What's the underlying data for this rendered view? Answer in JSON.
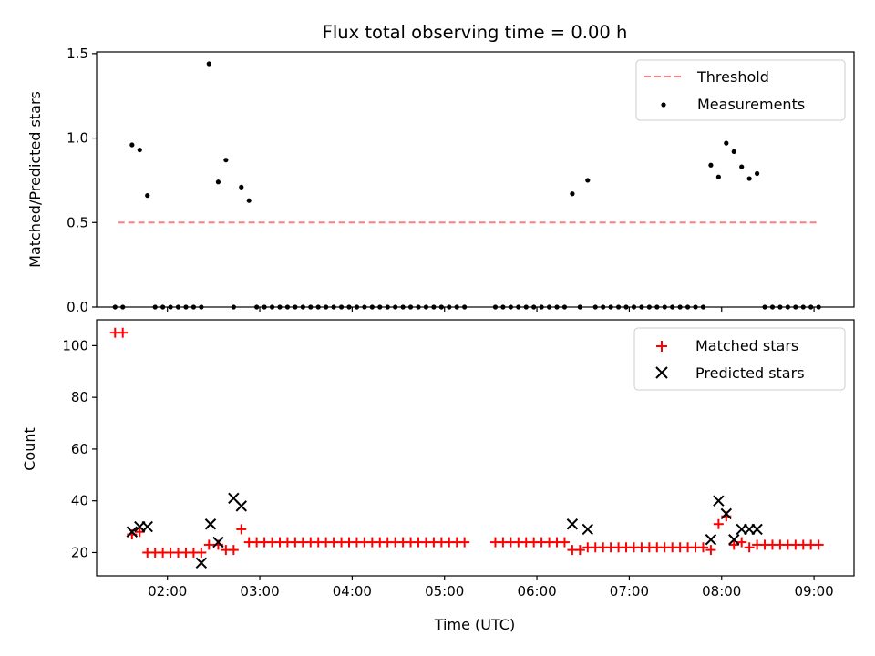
{
  "chart_data": [
    {
      "type": "scatter",
      "title": "Flux total observing time = 0.00 h",
      "xlabel": "",
      "ylabel": "Matched/Predicted stars",
      "xlim": [
        "01:14",
        "09:26"
      ],
      "ylim": [
        0,
        1.51
      ],
      "yticks": [
        0,
        0.5,
        1.0,
        1.5
      ],
      "ytick_labels": [
        "0.0",
        "0.5",
        "1.0",
        "1.5"
      ],
      "xticks": [
        "02:00",
        "03:00",
        "04:00",
        "05:00",
        "06:00",
        "07:00",
        "08:00",
        "09:00"
      ],
      "xtick_labels_shown": false,
      "legend_position": "upper right",
      "threshold": {
        "name": "Threshold",
        "value": 0.5,
        "x_start": "01:28",
        "x_end": "09:03",
        "color": "#ff7f7f",
        "style": "dashed"
      },
      "series": [
        {
          "name": "Measurements",
          "color": "#000000",
          "marker": "dot",
          "points": [
            [
              "01:26",
              0.0
            ],
            [
              "01:31",
              0.0
            ],
            [
              "01:37",
              0.96
            ],
            [
              "01:42",
              0.93
            ],
            [
              "01:47",
              0.66
            ],
            [
              "01:52",
              0.0
            ],
            [
              "01:57",
              0.0
            ],
            [
              "02:02",
              0.0
            ],
            [
              "02:07",
              0.0
            ],
            [
              "02:12",
              0.0
            ],
            [
              "02:17",
              0.0
            ],
            [
              "02:22",
              0.0
            ],
            [
              "02:27",
              1.44
            ],
            [
              "02:33",
              0.74
            ],
            [
              "02:38",
              0.87
            ],
            [
              "02:43",
              0.0
            ],
            [
              "02:48",
              0.71
            ],
            [
              "02:53",
              0.63
            ],
            [
              "02:58",
              0.0
            ],
            [
              "03:03",
              0.0
            ],
            [
              "03:08",
              0.0
            ],
            [
              "03:13",
              0.0
            ],
            [
              "03:18",
              0.0
            ],
            [
              "03:23",
              0.0
            ],
            [
              "03:28",
              0.0
            ],
            [
              "03:33",
              0.0
            ],
            [
              "03:38",
              0.0
            ],
            [
              "03:43",
              0.0
            ],
            [
              "03:48",
              0.0
            ],
            [
              "03:53",
              0.0
            ],
            [
              "03:58",
              0.0
            ],
            [
              "04:03",
              0.0
            ],
            [
              "04:08",
              0.0
            ],
            [
              "04:13",
              0.0
            ],
            [
              "04:18",
              0.0
            ],
            [
              "04:23",
              0.0
            ],
            [
              "04:28",
              0.0
            ],
            [
              "04:33",
              0.0
            ],
            [
              "04:38",
              0.0
            ],
            [
              "04:43",
              0.0
            ],
            [
              "04:48",
              0.0
            ],
            [
              "04:53",
              0.0
            ],
            [
              "04:58",
              0.0
            ],
            [
              "05:03",
              0.0
            ],
            [
              "05:08",
              0.0
            ],
            [
              "05:13",
              0.0
            ],
            [
              "05:33",
              0.0
            ],
            [
              "05:38",
              0.0
            ],
            [
              "05:43",
              0.0
            ],
            [
              "05:48",
              0.0
            ],
            [
              "05:53",
              0.0
            ],
            [
              "05:58",
              0.0
            ],
            [
              "06:03",
              0.0
            ],
            [
              "06:08",
              0.0
            ],
            [
              "06:13",
              0.0
            ],
            [
              "06:18",
              0.0
            ],
            [
              "06:23",
              0.67
            ],
            [
              "06:28",
              0.0
            ],
            [
              "06:33",
              0.75
            ],
            [
              "06:38",
              0.0
            ],
            [
              "06:43",
              0.0
            ],
            [
              "06:48",
              0.0
            ],
            [
              "06:53",
              0.0
            ],
            [
              "06:58",
              0.0
            ],
            [
              "07:03",
              0.0
            ],
            [
              "07:08",
              0.0
            ],
            [
              "07:13",
              0.0
            ],
            [
              "07:18",
              0.0
            ],
            [
              "07:23",
              0.0
            ],
            [
              "07:28",
              0.0
            ],
            [
              "07:33",
              0.0
            ],
            [
              "07:38",
              0.0
            ],
            [
              "07:43",
              0.0
            ],
            [
              "07:48",
              0.0
            ],
            [
              "07:53",
              0.84
            ],
            [
              "07:58",
              0.77
            ],
            [
              "08:03",
              0.97
            ],
            [
              "08:08",
              0.92
            ],
            [
              "08:13",
              0.83
            ],
            [
              "08:18",
              0.76
            ],
            [
              "08:23",
              0.79
            ],
            [
              "08:28",
              0.0
            ],
            [
              "08:33",
              0.0
            ],
            [
              "08:38",
              0.0
            ],
            [
              "08:43",
              0.0
            ],
            [
              "08:48",
              0.0
            ],
            [
              "08:53",
              0.0
            ],
            [
              "08:58",
              0.0
            ],
            [
              "09:03",
              0.0
            ]
          ]
        }
      ]
    },
    {
      "type": "scatter",
      "title": "",
      "xlabel": "Time (UTC)",
      "ylabel": "Count",
      "xlim": [
        "01:14",
        "09:26"
      ],
      "ylim": [
        11,
        110
      ],
      "yticks": [
        20,
        40,
        60,
        80,
        100
      ],
      "ytick_labels": [
        "20",
        "40",
        "60",
        "80",
        "100"
      ],
      "xticks": [
        "02:00",
        "03:00",
        "04:00",
        "05:00",
        "06:00",
        "07:00",
        "08:00",
        "09:00"
      ],
      "xtick_labels": [
        "02:00",
        "03:00",
        "04:00",
        "05:00",
        "06:00",
        "07:00",
        "08:00",
        "09:00"
      ],
      "legend_position": "upper right",
      "series": [
        {
          "name": "Matched stars",
          "color": "#ff0000",
          "marker": "plus",
          "points": [
            [
              "01:26",
              105
            ],
            [
              "01:31",
              105
            ],
            [
              "01:37",
              27
            ],
            [
              "01:42",
              28
            ],
            [
              "01:47",
              20
            ],
            [
              "01:52",
              20
            ],
            [
              "01:57",
              20
            ],
            [
              "02:02",
              20
            ],
            [
              "02:07",
              20
            ],
            [
              "02:12",
              20
            ],
            [
              "02:17",
              20
            ],
            [
              "02:22",
              20
            ],
            [
              "02:27",
              23
            ],
            [
              "02:33",
              23
            ],
            [
              "02:38",
              21
            ],
            [
              "02:43",
              21
            ],
            [
              "02:48",
              29
            ],
            [
              "02:53",
              24
            ],
            [
              "02:58",
              24
            ],
            [
              "03:03",
              24
            ],
            [
              "03:08",
              24
            ],
            [
              "03:13",
              24
            ],
            [
              "03:18",
              24
            ],
            [
              "03:23",
              24
            ],
            [
              "03:28",
              24
            ],
            [
              "03:33",
              24
            ],
            [
              "03:38",
              24
            ],
            [
              "03:43",
              24
            ],
            [
              "03:48",
              24
            ],
            [
              "03:53",
              24
            ],
            [
              "03:58",
              24
            ],
            [
              "04:03",
              24
            ],
            [
              "04:08",
              24
            ],
            [
              "04:13",
              24
            ],
            [
              "04:18",
              24
            ],
            [
              "04:23",
              24
            ],
            [
              "04:28",
              24
            ],
            [
              "04:33",
              24
            ],
            [
              "04:38",
              24
            ],
            [
              "04:43",
              24
            ],
            [
              "04:48",
              24
            ],
            [
              "04:53",
              24
            ],
            [
              "04:58",
              24
            ],
            [
              "05:03",
              24
            ],
            [
              "05:08",
              24
            ],
            [
              "05:13",
              24
            ],
            [
              "05:33",
              24
            ],
            [
              "05:38",
              24
            ],
            [
              "05:43",
              24
            ],
            [
              "05:48",
              24
            ],
            [
              "05:53",
              24
            ],
            [
              "05:58",
              24
            ],
            [
              "06:03",
              24
            ],
            [
              "06:08",
              24
            ],
            [
              "06:13",
              24
            ],
            [
              "06:18",
              24
            ],
            [
              "06:23",
              21
            ],
            [
              "06:28",
              21
            ],
            [
              "06:33",
              22
            ],
            [
              "06:38",
              22
            ],
            [
              "06:43",
              22
            ],
            [
              "06:48",
              22
            ],
            [
              "06:53",
              22
            ],
            [
              "06:58",
              22
            ],
            [
              "07:03",
              22
            ],
            [
              "07:08",
              22
            ],
            [
              "07:13",
              22
            ],
            [
              "07:18",
              22
            ],
            [
              "07:23",
              22
            ],
            [
              "07:28",
              22
            ],
            [
              "07:33",
              22
            ],
            [
              "07:38",
              22
            ],
            [
              "07:43",
              22
            ],
            [
              "07:48",
              22
            ],
            [
              "07:53",
              21
            ],
            [
              "07:58",
              31
            ],
            [
              "08:03",
              34
            ],
            [
              "08:08",
              23
            ],
            [
              "08:13",
              24
            ],
            [
              "08:18",
              22
            ],
            [
              "08:23",
              23
            ],
            [
              "08:28",
              23
            ],
            [
              "08:33",
              23
            ],
            [
              "08:38",
              23
            ],
            [
              "08:43",
              23
            ],
            [
              "08:48",
              23
            ],
            [
              "08:53",
              23
            ],
            [
              "08:58",
              23
            ],
            [
              "09:03",
              23
            ]
          ]
        },
        {
          "name": "Predicted stars",
          "color": "#000000",
          "marker": "x",
          "points": [
            [
              "01:37",
              28
            ],
            [
              "01:42",
              30
            ],
            [
              "01:47",
              30
            ],
            [
              "02:22",
              16
            ],
            [
              "02:28",
              31
            ],
            [
              "02:33",
              24
            ],
            [
              "02:43",
              41
            ],
            [
              "02:48",
              38
            ],
            [
              "06:23",
              31
            ],
            [
              "06:33",
              29
            ],
            [
              "07:53",
              25
            ],
            [
              "07:58",
              40
            ],
            [
              "08:03",
              35
            ],
            [
              "08:08",
              25
            ],
            [
              "08:13",
              29
            ],
            [
              "08:18",
              29
            ],
            [
              "08:23",
              29
            ]
          ]
        }
      ]
    }
  ]
}
